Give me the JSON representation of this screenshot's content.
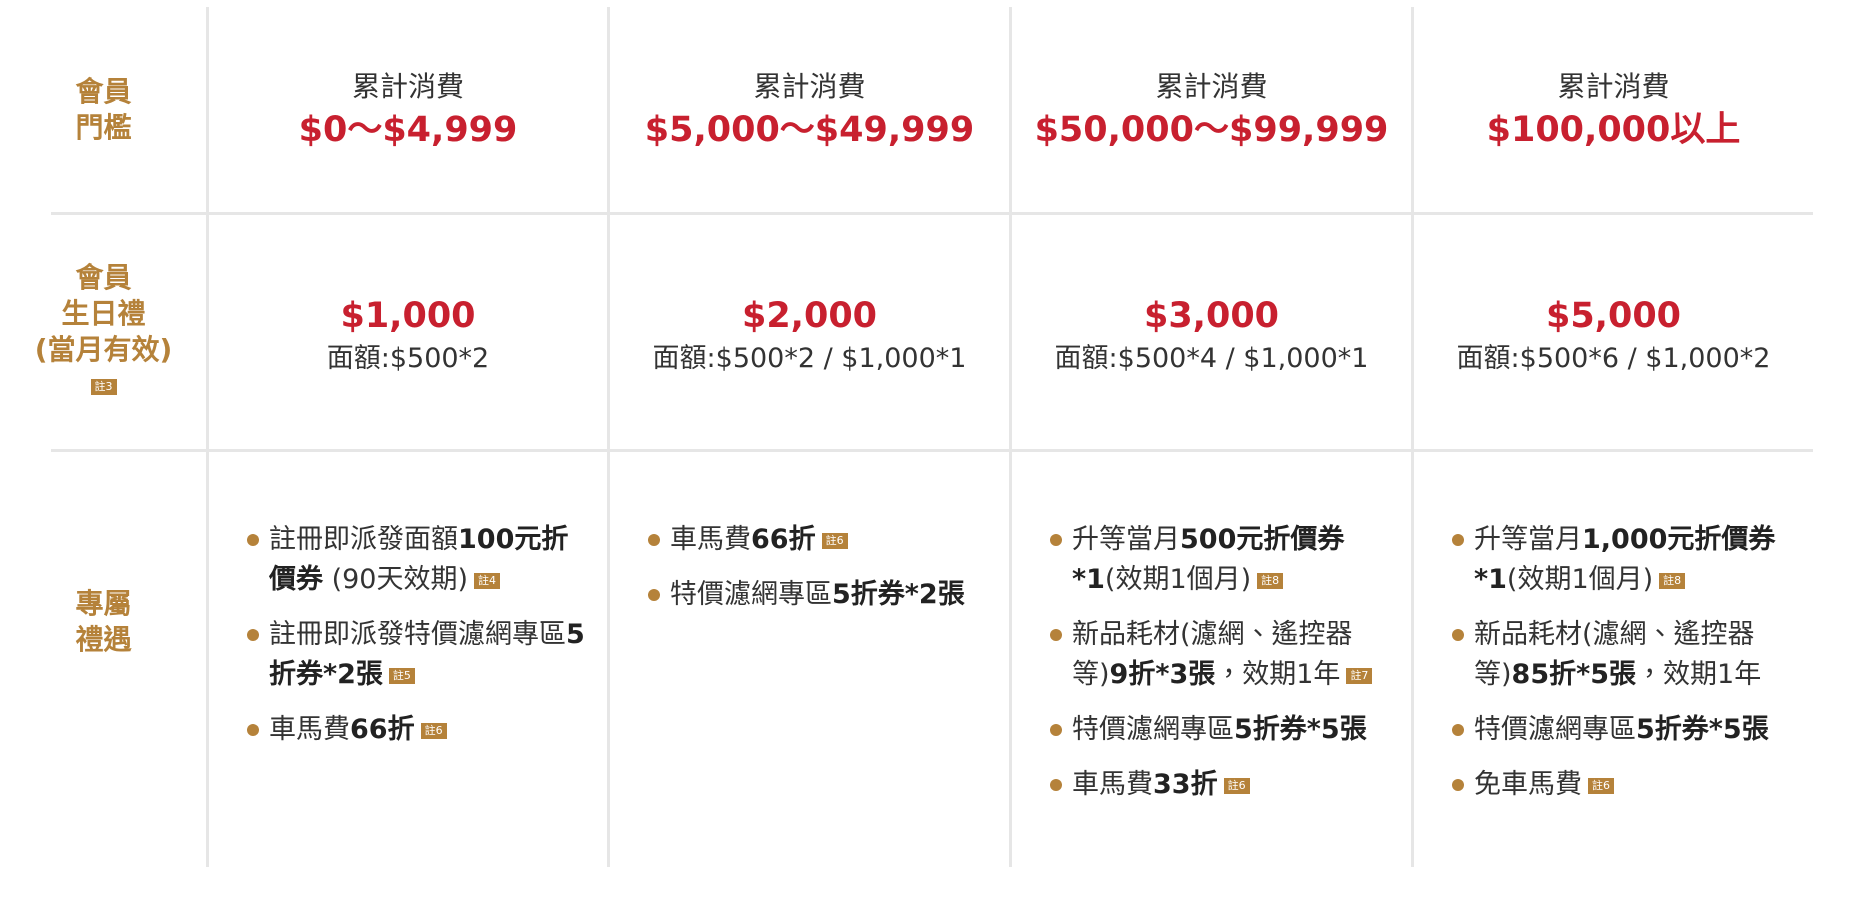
{
  "threshold": {
    "label": [
      "會員",
      "門檻"
    ],
    "tiers": [
      {
        "caption": "累計消費",
        "range": "$0～$4,999"
      },
      {
        "caption": "累計消費",
        "range": "$5,000～$49,999"
      },
      {
        "caption": "累計消費",
        "range": "$50,000～$99,999"
      },
      {
        "caption": "累計消費",
        "range": "$100,000以上"
      }
    ]
  },
  "birthday": {
    "label": [
      "會員",
      "生日禮",
      "(當月有效)"
    ],
    "note": "註3",
    "gifts": [
      {
        "amount": "$1,000",
        "detail": "面額:$500*2"
      },
      {
        "amount": "$2,000",
        "detail": "面額:$500*2 / $1,000*1"
      },
      {
        "amount": "$3,000",
        "detail": "面額:$500*4 / $1,000*1"
      },
      {
        "amount": "$5,000",
        "detail": "面額:$500*6 / $1,000*2"
      }
    ]
  },
  "perks": {
    "label": [
      "專屬",
      "禮遇"
    ],
    "columns": [
      [
        {
          "segments": [
            {
              "text": "註冊即派發面額"
            },
            {
              "text": "100元折價券",
              "bold": true
            },
            {
              "text": " (90天效期)"
            }
          ],
          "note": "註4"
        },
        {
          "segments": [
            {
              "text": "註冊即派發特價濾網專區"
            },
            {
              "text": "5折券*2張",
              "bold": true
            }
          ],
          "note": "註5"
        },
        {
          "segments": [
            {
              "text": "車馬費"
            },
            {
              "text": "66折",
              "bold": true
            }
          ],
          "note": "註6"
        }
      ],
      [
        {
          "segments": [
            {
              "text": "車馬費"
            },
            {
              "text": "66折",
              "bold": true
            }
          ],
          "note": "註6"
        },
        {
          "segments": [
            {
              "text": "特價濾網專區"
            },
            {
              "text": "5折券*2張",
              "bold": true
            }
          ]
        }
      ],
      [
        {
          "segments": [
            {
              "text": "升等當月"
            },
            {
              "text": "500元折價券*1",
              "bold": true
            },
            {
              "text": "(效期1個月)"
            }
          ],
          "note": "註8"
        },
        {
          "segments": [
            {
              "text": "新品耗材(濾網、遙控器等)"
            },
            {
              "text": "9折*3張",
              "bold": true
            },
            {
              "text": "，效期1年"
            }
          ],
          "note": "註7"
        },
        {
          "segments": [
            {
              "text": "特價濾網專區"
            },
            {
              "text": "5折券*5張",
              "bold": true
            }
          ]
        },
        {
          "segments": [
            {
              "text": "車馬費"
            },
            {
              "text": "33折",
              "bold": true
            }
          ],
          "note": "註6"
        }
      ],
      [
        {
          "segments": [
            {
              "text": "升等當月"
            },
            {
              "text": "1,000元折價券*1",
              "bold": true
            },
            {
              "text": "(效期1個月)"
            }
          ],
          "note": "註8"
        },
        {
          "segments": [
            {
              "text": "新品耗材(濾網、遙控器等)"
            },
            {
              "text": "85折*5張",
              "bold": true
            },
            {
              "text": "，效期1年"
            }
          ]
        },
        {
          "segments": [
            {
              "text": "特價濾網專區"
            },
            {
              "text": "5折券*5張",
              "bold": true
            }
          ]
        },
        {
          "segments": [
            {
              "text": "免車馬費"
            }
          ],
          "note": "註6"
        }
      ]
    ]
  }
}
